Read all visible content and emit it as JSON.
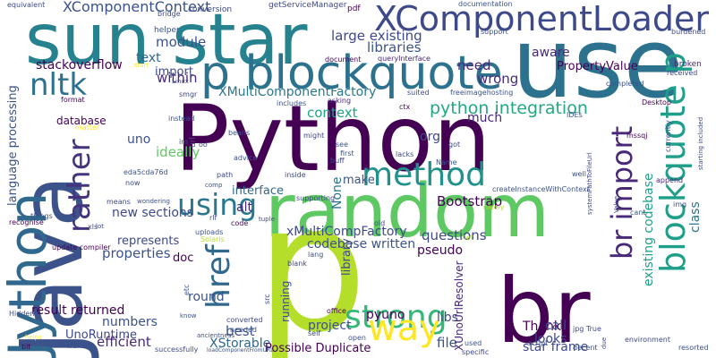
{
  "words": [
    {
      "text": "Python",
      "color": "#440154"
    },
    {
      "text": "random",
      "color": "#5ec962"
    },
    {
      "text": "br",
      "color": "#440154"
    },
    {
      "text": "p",
      "color": "#b5de2b"
    },
    {
      "text": "use",
      "color": "#2c728e"
    },
    {
      "text": "sun star",
      "color": "#26828e"
    },
    {
      "text": "Java",
      "color": "#3b528b"
    },
    {
      "text": "Jython",
      "color": "#31688e"
    },
    {
      "text": "p blockquote",
      "color": "#2c728e"
    },
    {
      "text": "XComponentLoader",
      "color": "#3e4989"
    },
    {
      "text": "blockquote p",
      "color": "#1f9e89"
    },
    {
      "text": "br import",
      "color": "#482878"
    },
    {
      "text": "nltk",
      "color": "#2c728e"
    },
    {
      "text": "method",
      "color": "#21918c"
    },
    {
      "text": "using",
      "color": "#2a788e"
    },
    {
      "text": "strong",
      "color": "#35b779"
    },
    {
      "text": "way",
      "color": "#fde725"
    },
    {
      "text": "href",
      "color": "#31688e"
    },
    {
      "text": "rather",
      "color": "#46337e"
    },
    {
      "text": "python integration",
      "color": "#22a884"
    },
    {
      "text": "XComponentContext",
      "color": "#3b528b"
    },
    {
      "text": "large existing",
      "color": "#3e4989"
    },
    {
      "text": "libraries",
      "color": "#3b528b"
    },
    {
      "text": "need",
      "color": "#482878"
    },
    {
      "text": "wrong",
      "color": "#482878"
    },
    {
      "text": "aware",
      "color": "#482878"
    },
    {
      "text": "PropertyValue",
      "color": "#440154"
    },
    {
      "text": "module",
      "color": "#3b528b"
    },
    {
      "text": "within",
      "color": "#482878"
    },
    {
      "text": "text",
      "color": "#31688e"
    },
    {
      "text": "stackoverflow",
      "color": "#440154"
    },
    {
      "text": "import",
      "color": "#3e4989"
    },
    {
      "text": "XMultiComponentFactory",
      "color": "#2a788e"
    },
    {
      "text": "context",
      "color": "#20a486"
    },
    {
      "text": "much",
      "color": "#482878"
    },
    {
      "text": "org",
      "color": "#3e4989"
    },
    {
      "text": "uno",
      "color": "#3b528b"
    },
    {
      "text": "ideally",
      "color": "#5ec962"
    },
    {
      "text": "interface",
      "color": "#31688e"
    },
    {
      "text": "new sections",
      "color": "#3e4989"
    },
    {
      "text": "Bootstrap",
      "color": "#440154"
    },
    {
      "text": "None",
      "color": "#2c728e"
    },
    {
      "text": "make",
      "color": "#3b528b"
    },
    {
      "text": "alt",
      "color": "#482878"
    },
    {
      "text": "xMultiCompFactory",
      "color": "#3e4989"
    },
    {
      "text": "codebase written",
      "color": "#3b528b"
    },
    {
      "text": "questions",
      "color": "#3e4989"
    },
    {
      "text": "pseudo",
      "color": "#440154"
    },
    {
      "text": "represents",
      "color": "#3e4989"
    },
    {
      "text": "properties",
      "color": "#3b528b"
    },
    {
      "text": "doc",
      "color": "#440154"
    },
    {
      "text": "round",
      "color": "#3b528b"
    },
    {
      "text": "best",
      "color": "#3b528b"
    },
    {
      "text": "running",
      "color": "#3e4989"
    },
    {
      "text": "result returned",
      "color": "#440154"
    },
    {
      "text": "numbers",
      "color": "#3b528b"
    },
    {
      "text": "UnoRuntime",
      "color": "#3e4989"
    },
    {
      "text": "efficient",
      "color": "#482878"
    },
    {
      "text": "XStorable",
      "color": "#31688e"
    },
    {
      "text": "project",
      "color": "#3b528b"
    },
    {
      "text": "pyuno",
      "color": "#440154"
    },
    {
      "text": "libs",
      "color": "#3e4989"
    },
    {
      "text": "Thank",
      "color": "#440154"
    },
    {
      "text": "looks",
      "color": "#3e4989"
    },
    {
      "text": "call",
      "color": "#3e4989"
    },
    {
      "text": "file",
      "color": "#3b528b"
    },
    {
      "text": "star frame",
      "color": "#3e4989"
    },
    {
      "text": "Possible Duplicate",
      "color": "#440154"
    },
    {
      "text": "existing codebase",
      "color": "#1f9e89"
    },
    {
      "text": "class",
      "color": "#2c728e"
    },
    {
      "text": "library",
      "color": "#3e4989"
    },
    {
      "text": "XUnoUrlResolver",
      "color": "#482878"
    },
    {
      "text": "language processing",
      "color": "#3b528b"
    },
    {
      "text": "database",
      "color": "#440154"
    },
    {
      "text": "equivalent",
      "color": "#3e4989"
    },
    {
      "text": "getServiceManager",
      "color": "#3e4989"
    },
    {
      "text": "conversion",
      "color": "#3e4989"
    },
    {
      "text": "documentation",
      "color": "#3b528b"
    },
    {
      "text": "pdf",
      "color": "#440154"
    },
    {
      "text": "helper",
      "color": "#3b528b"
    },
    {
      "text": "bridge",
      "color": "#3e4989"
    },
    {
      "text": "queryInterface",
      "color": "#482878"
    },
    {
      "text": "document",
      "color": "#440154"
    },
    {
      "text": "support",
      "color": "#3b528b"
    },
    {
      "text": "burdened",
      "color": "#3e4989"
    },
    {
      "text": "broken",
      "color": "#482878"
    },
    {
      "text": "received",
      "color": "#3e4989"
    },
    {
      "text": "completed",
      "color": "#3b528b"
    },
    {
      "text": "Desktop",
      "color": "#440154"
    },
    {
      "text": "freeimagehosting",
      "color": "#3b528b"
    },
    {
      "text": "suited",
      "color": "#3e4989"
    },
    {
      "text": "format",
      "color": "#440154"
    },
    {
      "text": "smgr",
      "color": "#3e4989"
    },
    {
      "text": "includes",
      "color": "#3b528b"
    },
    {
      "text": "asking",
      "color": "#482878"
    },
    {
      "text": "ctx",
      "color": "#440154"
    },
    {
      "text": "IDEs",
      "color": "#3b528b"
    },
    {
      "text": "instead",
      "color": "#3b528b"
    },
    {
      "text": "matter",
      "color": "#fde725"
    },
    {
      "text": "beans",
      "color": "#3b528b"
    },
    {
      "text": "might",
      "color": "#3e4989"
    },
    {
      "text": "got",
      "color": "#3e4989"
    },
    {
      "text": "first",
      "color": "#3b528b"
    },
    {
      "text": "buff",
      "color": "#3e4989"
    },
    {
      "text": "see",
      "color": "#3b528b"
    },
    {
      "text": "lacks",
      "color": "#3e4989"
    },
    {
      "text": "advice",
      "color": "#3b528b"
    },
    {
      "text": "Name",
      "color": "#3b528b"
    },
    {
      "text": "path",
      "color": "#3e4989"
    },
    {
      "text": "comp",
      "color": "#3b528b"
    },
    {
      "text": "inside",
      "color": "#3e4989"
    },
    {
      "text": "well",
      "color": "#3b528b"
    },
    {
      "text": "eda5cda76d",
      "color": "#3b528b"
    },
    {
      "text": "now",
      "color": "#3e4989"
    },
    {
      "text": "createInstanceWithContext",
      "color": "#3b528b"
    },
    {
      "text": "systemPathToFileUrl",
      "color": "#3e4989"
    },
    {
      "text": "Value",
      "color": "#3e4989"
    },
    {
      "text": "append",
      "color": "#482878"
    },
    {
      "text": "starting included",
      "color": "#3e4989"
    },
    {
      "text": "currently",
      "color": "#3b528b"
    },
    {
      "text": "img",
      "color": "#3b528b"
    },
    {
      "text": "cant",
      "color": "#3b528b"
    },
    {
      "text": "nicely",
      "color": "#b5de2b"
    },
    {
      "text": "supporting",
      "color": "#3e4989"
    },
    {
      "text": "tuple",
      "color": "#3e4989"
    },
    {
      "text": "wondering",
      "color": "#3b528b"
    },
    {
      "text": "means",
      "color": "#3e4989"
    },
    {
      "text": "recognise",
      "color": "#440154"
    },
    {
      "text": "things",
      "color": "#3b528b"
    },
    {
      "text": "xls",
      "color": "#3e4989"
    },
    {
      "text": "update compiler",
      "color": "#440154"
    },
    {
      "text": "uploads",
      "color": "#3b528b"
    },
    {
      "text": "code",
      "color": "#440154"
    },
    {
      "text": "old",
      "color": "#3e4989"
    },
    {
      "text": "lang",
      "color": "#3b528b"
    },
    {
      "text": "blank",
      "color": "#3e4989"
    },
    {
      "text": "net",
      "color": "#b5de2b"
    },
    {
      "text": "office",
      "color": "#440154"
    },
    {
      "text": "self",
      "color": "#3e4989"
    },
    {
      "text": "open",
      "color": "#3b528b"
    },
    {
      "text": "converted",
      "color": "#3e4989"
    },
    {
      "text": "needed",
      "color": "#3b528b"
    },
    {
      "text": "ancientness",
      "color": "#3e4989"
    },
    {
      "text": "know",
      "color": "#3b528b"
    },
    {
      "text": "Hidden",
      "color": "#3b528b"
    },
    {
      "text": "helps",
      "color": "#fde725"
    },
    {
      "text": "bit",
      "color": "#440154"
    },
    {
      "text": "frame",
      "color": "#3b528b"
    },
    {
      "text": "successfully",
      "color": "#3e4989"
    },
    {
      "text": "loadComponentFromURL",
      "color": "#3b528b"
    },
    {
      "text": "used",
      "color": "#3b528b"
    },
    {
      "text": "specific",
      "color": "#3e4989"
    },
    {
      "text": "script",
      "color": "#3b528b"
    },
    {
      "text": "jpg True",
      "color": "#3e4989"
    },
    {
      "text": "decent",
      "color": "#3b528b"
    },
    {
      "text": "environment",
      "color": "#3e4989"
    },
    {
      "text": "resorted",
      "color": "#3b528b"
    },
    {
      "text": "due",
      "color": "#3e4989"
    },
    {
      "text": "url",
      "color": "#3b528b"
    },
    {
      "text": "im",
      "color": "#3e4989"
    },
    {
      "text": "rlf",
      "color": "#3e4989"
    },
    {
      "text": "src",
      "color": "#3e4989"
    },
    {
      "text": "etc",
      "color": "#3b528b"
    },
    {
      "text": "Linux",
      "color": "#3e4989"
    },
    {
      "text": "start",
      "color": "#fde725"
    },
    {
      "text": "Solaris",
      "color": "#b5de2b"
    },
    {
      "text": "lot",
      "color": "#3e4989"
    },
    {
      "text": "oo",
      "color": "#3e4989"
    },
    {
      "text": "mssqj",
      "color": "#440154"
    }
  ]
}
